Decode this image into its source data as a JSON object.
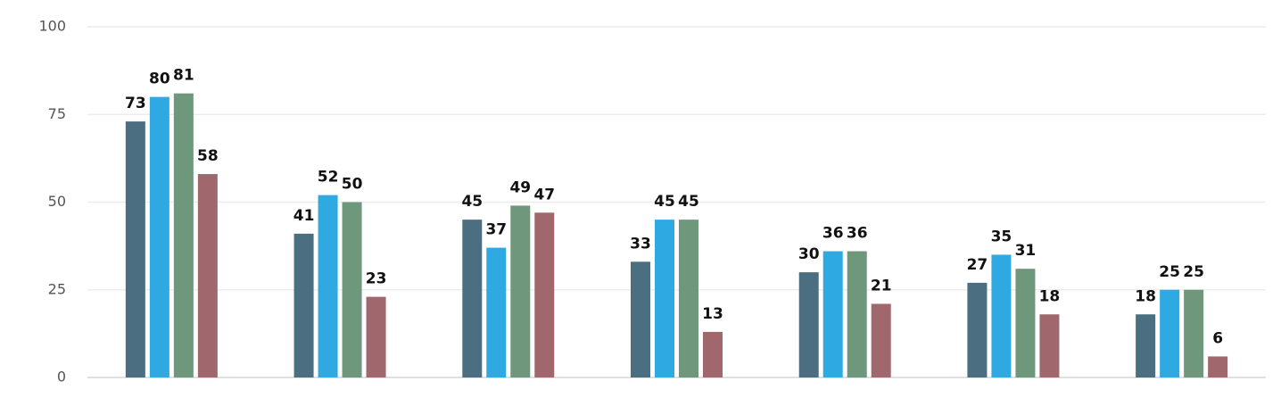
{
  "chart_data": {
    "type": "bar",
    "categories": [
      null,
      null,
      null,
      null,
      null,
      null,
      null
    ],
    "series": [
      {
        "color": "#4b6f80",
        "values": [
          73,
          41,
          45,
          33,
          30,
          27,
          18
        ]
      },
      {
        "color": "#2fa9e1",
        "values": [
          80,
          52,
          37,
          45,
          36,
          35,
          25
        ]
      },
      {
        "color": "#6f977b",
        "values": [
          81,
          50,
          49,
          45,
          36,
          31,
          25
        ]
      },
      {
        "color": "#a0686c",
        "values": [
          58,
          23,
          47,
          13,
          21,
          18,
          6
        ]
      }
    ],
    "ylim": [
      0,
      100
    ],
    "yticks": [
      0,
      25,
      50,
      75,
      100
    ],
    "grid": true
  }
}
